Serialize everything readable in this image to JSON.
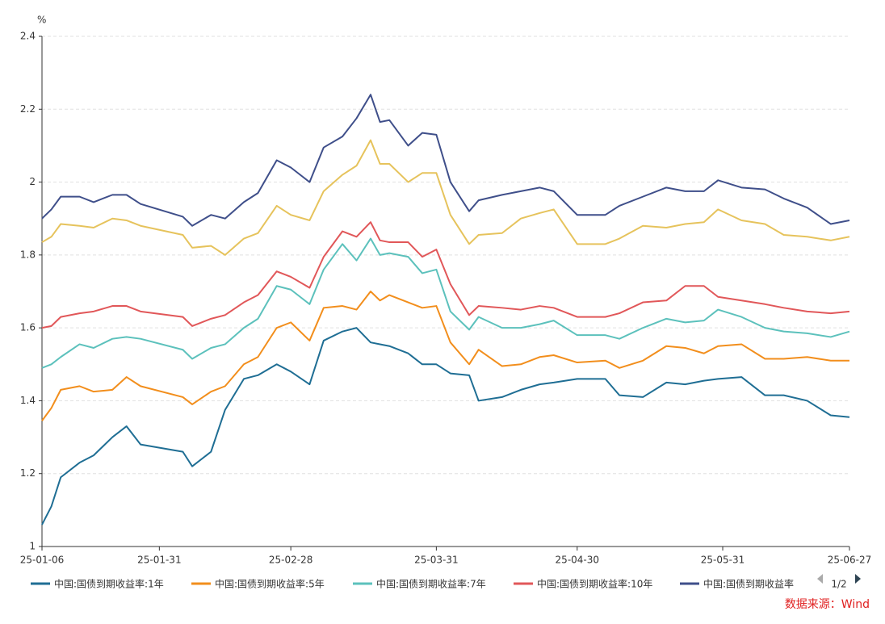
{
  "chart_data": {
    "type": "line",
    "y_unit": "%",
    "x": [
      "25-01-06",
      "25-01-08",
      "25-01-10",
      "25-01-14",
      "25-01-17",
      "25-01-21",
      "25-01-24",
      "25-01-27",
      "25-02-05",
      "25-02-07",
      "25-02-11",
      "25-02-14",
      "25-02-18",
      "25-02-21",
      "25-02-25",
      "25-02-28",
      "25-03-04",
      "25-03-07",
      "25-03-11",
      "25-03-14",
      "25-03-17",
      "25-03-19",
      "25-03-21",
      "25-03-25",
      "25-03-28",
      "25-03-31",
      "25-04-03",
      "25-04-07",
      "25-04-09",
      "25-04-14",
      "25-04-18",
      "25-04-22",
      "25-04-25",
      "25-04-30",
      "25-05-06",
      "25-05-09",
      "25-05-14",
      "25-05-19",
      "25-05-23",
      "25-05-27",
      "25-05-30",
      "25-06-04",
      "25-06-09",
      "25-06-13",
      "25-06-18",
      "25-06-23",
      "25-06-27"
    ],
    "xlim": [
      "25-01-06",
      "25-06-27"
    ],
    "xticks": [
      "25-01-06",
      "25-01-31",
      "25-02-28",
      "25-03-31",
      "25-04-30",
      "25-05-31",
      "25-06-27"
    ],
    "ylim": [
      1,
      2.4
    ],
    "yticks": [
      1,
      1.2,
      1.4,
      1.6,
      1.8,
      2,
      2.2,
      2.4
    ],
    "grid": true,
    "series": [
      {
        "name": "中国:国债到期收益率:1年",
        "color": "#1f6e94",
        "values": [
          1.06,
          1.11,
          1.19,
          1.23,
          1.25,
          1.3,
          1.33,
          1.28,
          1.26,
          1.22,
          1.26,
          1.375,
          1.46,
          1.47,
          1.5,
          1.48,
          1.445,
          1.565,
          1.59,
          1.6,
          1.56,
          1.555,
          1.55,
          1.53,
          1.5,
          1.5,
          1.475,
          1.47,
          1.4,
          1.41,
          1.43,
          1.445,
          1.45,
          1.46,
          1.46,
          1.415,
          1.41,
          1.45,
          1.445,
          1.455,
          1.46,
          1.465,
          1.415,
          1.415,
          1.4,
          1.36,
          1.355
        ]
      },
      {
        "name": "中国:国债到期收益率:5年",
        "color": "#f28e1c",
        "values": [
          1.345,
          1.38,
          1.43,
          1.44,
          1.425,
          1.43,
          1.465,
          1.44,
          1.41,
          1.39,
          1.425,
          1.44,
          1.5,
          1.52,
          1.6,
          1.615,
          1.565,
          1.655,
          1.66,
          1.65,
          1.7,
          1.675,
          1.69,
          1.67,
          1.655,
          1.66,
          1.56,
          1.5,
          1.54,
          1.495,
          1.5,
          1.52,
          1.525,
          1.505,
          1.51,
          1.49,
          1.51,
          1.55,
          1.545,
          1.53,
          1.55,
          1.555,
          1.515,
          1.515,
          1.52,
          1.51,
          1.51
        ]
      },
      {
        "name": "中国:国债到期收益率:7年",
        "color": "#5cc1bc",
        "values": [
          1.49,
          1.5,
          1.52,
          1.555,
          1.545,
          1.57,
          1.575,
          1.57,
          1.54,
          1.515,
          1.545,
          1.555,
          1.6,
          1.625,
          1.715,
          1.705,
          1.665,
          1.76,
          1.83,
          1.785,
          1.845,
          1.8,
          1.805,
          1.795,
          1.75,
          1.76,
          1.645,
          1.595,
          1.63,
          1.6,
          1.6,
          1.61,
          1.62,
          1.58,
          1.58,
          1.57,
          1.6,
          1.625,
          1.615,
          1.62,
          1.65,
          1.63,
          1.6,
          1.59,
          1.585,
          1.575,
          1.59
        ]
      },
      {
        "name": "中国:国债到期收益率:10年",
        "color": "#e15759",
        "values": [
          1.6,
          1.605,
          1.63,
          1.64,
          1.645,
          1.66,
          1.66,
          1.645,
          1.63,
          1.605,
          1.625,
          1.635,
          1.67,
          1.69,
          1.755,
          1.74,
          1.71,
          1.795,
          1.865,
          1.85,
          1.89,
          1.84,
          1.835,
          1.835,
          1.795,
          1.815,
          1.72,
          1.635,
          1.66,
          1.655,
          1.65,
          1.66,
          1.655,
          1.63,
          1.63,
          1.64,
          1.67,
          1.675,
          1.715,
          1.715,
          1.685,
          1.675,
          1.665,
          1.655,
          1.645,
          1.64,
          1.645
        ]
      },
      {
        "name": "中国:国债到期收益率",
        "color": "#3f4f8a",
        "values": [
          1.9,
          1.925,
          1.96,
          1.96,
          1.945,
          1.965,
          1.965,
          1.94,
          1.905,
          1.88,
          1.91,
          1.9,
          1.945,
          1.97,
          2.06,
          2.04,
          2.0,
          2.095,
          2.125,
          2.175,
          2.24,
          2.165,
          2.17,
          2.1,
          2.135,
          2.13,
          2.0,
          1.92,
          1.95,
          1.965,
          1.975,
          1.985,
          1.975,
          1.91,
          1.91,
          1.935,
          1.96,
          1.985,
          1.975,
          1.975,
          2.005,
          1.985,
          1.98,
          1.955,
          1.93,
          1.885,
          1.895
        ]
      },
      {
        "color": "#e6c35c",
        "values": [
          1.835,
          1.85,
          1.885,
          1.88,
          1.875,
          1.9,
          1.895,
          1.88,
          1.855,
          1.82,
          1.825,
          1.8,
          1.845,
          1.86,
          1.935,
          1.91,
          1.895,
          1.975,
          2.02,
          2.045,
          2.115,
          2.05,
          2.05,
          2.0,
          2.025,
          2.025,
          1.91,
          1.83,
          1.855,
          1.86,
          1.9,
          1.915,
          1.925,
          1.83,
          1.83,
          1.845,
          1.88,
          1.875,
          1.885,
          1.89,
          1.925,
          1.895,
          1.885,
          1.855,
          1.85,
          1.84,
          1.85
        ]
      }
    ],
    "legend_page": "1/2",
    "source": "数据来源：Wind"
  }
}
